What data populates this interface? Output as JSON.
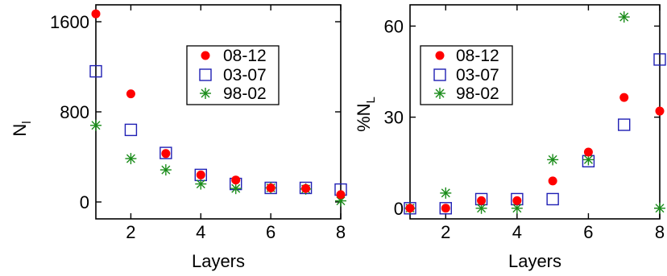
{
  "colors": {
    "s0812": "#ff0000",
    "s0307": "#1f1fb4",
    "s9802": "#1a8c1a"
  },
  "chart_data": [
    {
      "type": "scatter",
      "xlabel": "Layers",
      "ylabel_main": "N",
      "ylabel_sub": "l",
      "xlim": [
        1,
        8
      ],
      "ylim": [
        -150,
        1750
      ],
      "xticks": [
        2,
        4,
        6,
        8
      ],
      "yticks": [
        0,
        800,
        1600
      ],
      "xtick_labels": [
        "2",
        "4",
        "6",
        "8"
      ],
      "ytick_labels": [
        "0",
        "800",
        "1600"
      ],
      "legend": [
        "08-12",
        "03-07",
        "98-02"
      ],
      "series": [
        {
          "name": "08-12",
          "marker": "circle",
          "x": [
            1,
            2,
            3,
            4,
            5,
            6,
            7,
            8
          ],
          "y": [
            1670,
            960,
            430,
            240,
            195,
            125,
            120,
            65
          ]
        },
        {
          "name": "03-07",
          "marker": "square",
          "x": [
            1,
            2,
            3,
            4,
            5,
            6,
            7,
            8
          ],
          "y": [
            1160,
            640,
            435,
            240,
            160,
            125,
            125,
            110
          ]
        },
        {
          "name": "98-02",
          "marker": "star",
          "x": [
            1,
            2,
            3,
            4,
            5,
            6,
            7,
            8
          ],
          "y": [
            680,
            385,
            285,
            160,
            120,
            125,
            115,
            10
          ]
        }
      ]
    },
    {
      "type": "scatter",
      "xlabel": "Layers",
      "ylabel_main": "%N",
      "ylabel_sub": "L",
      "xlim": [
        1,
        8
      ],
      "ylim": [
        -3.5,
        67
      ],
      "xticks": [
        2,
        4,
        6,
        8
      ],
      "yticks": [
        0,
        30,
        60
      ],
      "xtick_labels": [
        "2",
        "4",
        "6",
        "8"
      ],
      "ytick_labels": [
        "0",
        "30",
        "60"
      ],
      "legend": [
        "08-12",
        "03-07",
        "98-02"
      ],
      "series": [
        {
          "name": "08-12",
          "marker": "circle",
          "x": [
            1,
            2,
            3,
            4,
            5,
            6,
            7,
            8
          ],
          "y": [
            0,
            0,
            2.5,
            2.5,
            9,
            18.5,
            36.5,
            32
          ]
        },
        {
          "name": "03-07",
          "marker": "square",
          "x": [
            1,
            2,
            3,
            4,
            5,
            6,
            7,
            8
          ],
          "y": [
            0,
            0,
            3,
            3,
            3,
            15.5,
            27.5,
            49
          ]
        },
        {
          "name": "98-02",
          "marker": "star",
          "x": [
            1,
            2,
            3,
            4,
            5,
            6,
            7,
            8
          ],
          "y": [
            0,
            5,
            0,
            0,
            16,
            16,
            63,
            0
          ]
        }
      ]
    }
  ]
}
